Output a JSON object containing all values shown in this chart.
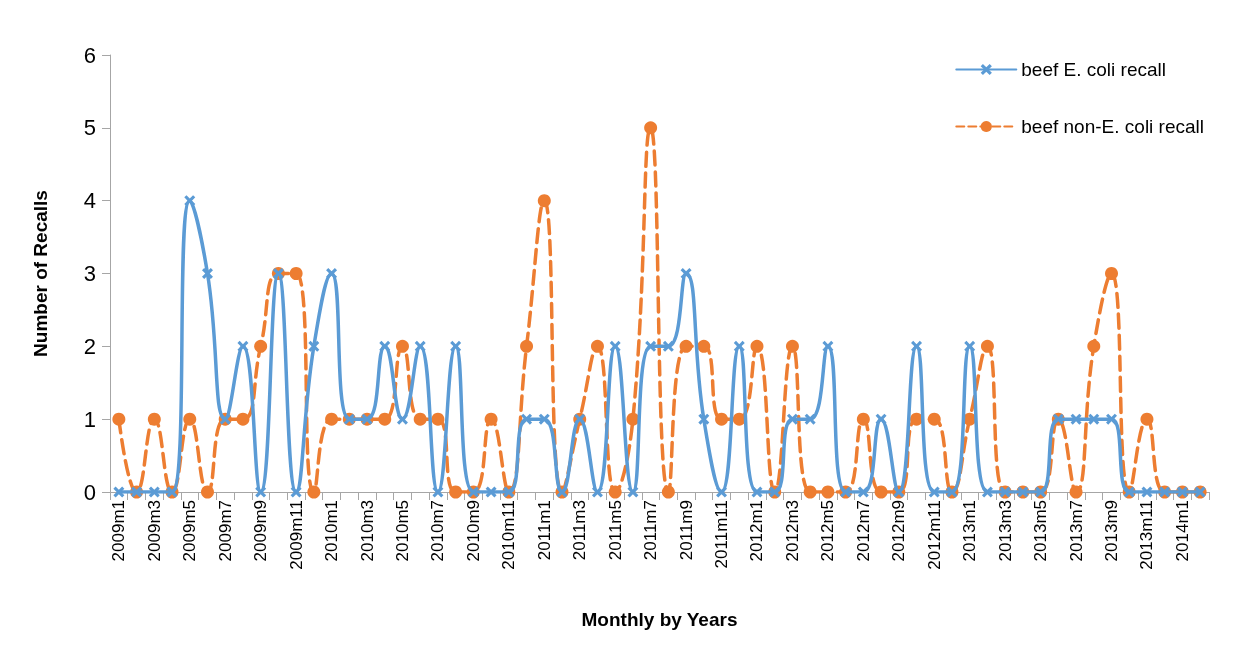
{
  "chart_data": {
    "type": "line",
    "xlabel": "Monthly by Years",
    "ylabel": "Number of Recalls",
    "categories": [
      "2009m1",
      null,
      "2009m3",
      null,
      "2009m5",
      null,
      "2009m7",
      null,
      "2009m9",
      null,
      "2009m11",
      null,
      "2010m1",
      null,
      "2010m3",
      null,
      "2010m5",
      null,
      "2010m7",
      null,
      "2010m9",
      null,
      "2010m11",
      null,
      "2011m1",
      null,
      "2011m3",
      null,
      "2011m5",
      null,
      "2011m7",
      null,
      "2011m9",
      null,
      "2011m11",
      null,
      "2012m1",
      null,
      "2012m3",
      null,
      "2012m5",
      null,
      "2012m7",
      null,
      "2012m9",
      null,
      "2012m11",
      null,
      "2013m1",
      null,
      "2013m3",
      null,
      "2013m5",
      null,
      "2013m7",
      null,
      "2013m9",
      null,
      "2013m11",
      null,
      "2014m1",
      null
    ],
    "series": [
      {
        "name": "beef E. coli recall",
        "color": "#5b9bd5",
        "marker": "cross",
        "line_style": "solid",
        "values": [
          0,
          0,
          0,
          0,
          4,
          3,
          1,
          2,
          0,
          3,
          0,
          2,
          3,
          1,
          1,
          2,
          1,
          2,
          0,
          2,
          0,
          0,
          0,
          1,
          1,
          0,
          1,
          0,
          2,
          0,
          2,
          2,
          3,
          1,
          0,
          2,
          0,
          0,
          1,
          1,
          2,
          0,
          0,
          1,
          0,
          2,
          0,
          0,
          2,
          0,
          0,
          0,
          0,
          1,
          1,
          1,
          1,
          0,
          0,
          0,
          0,
          0
        ]
      },
      {
        "name": "beef non-E. coli recall",
        "color": "#ed7d31",
        "marker": "circle",
        "line_style": "dashed",
        "values": [
          1,
          0,
          1,
          0,
          1,
          0,
          1,
          1,
          2,
          3,
          3,
          0,
          1,
          1,
          1,
          1,
          2,
          1,
          1,
          0,
          0,
          1,
          0,
          2,
          4,
          0,
          1,
          2,
          0,
          1,
          5,
          0,
          2,
          2,
          1,
          1,
          2,
          0,
          2,
          0,
          0,
          0,
          1,
          0,
          0,
          1,
          1,
          0,
          1,
          2,
          0,
          0,
          0,
          1,
          0,
          2,
          3,
          0,
          1,
          0,
          0,
          0
        ]
      }
    ],
    "ylim": [
      0,
      6
    ],
    "yticks": [
      0,
      1,
      2,
      3,
      4,
      5,
      6
    ],
    "grid": false,
    "legend": "top right"
  }
}
